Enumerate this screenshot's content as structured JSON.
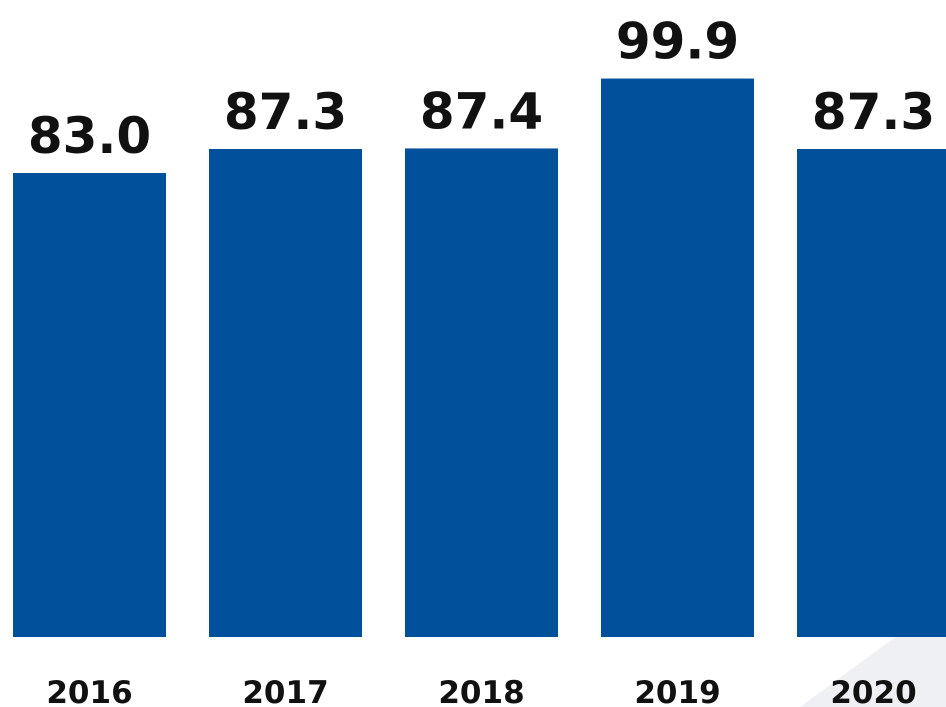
{
  "chart_data": {
    "type": "bar",
    "categories": [
      "2016",
      "2017",
      "2018",
      "2019",
      "2020"
    ],
    "values": [
      83.0,
      87.3,
      87.4,
      99.9,
      87.3
    ],
    "value_labels": [
      "83.0",
      "87.3",
      "87.4",
      "99.9",
      "87.3"
    ],
    "title": "",
    "xlabel": "",
    "ylabel": "",
    "grid": false,
    "legend": "none",
    "colors": {
      "bar": "#00509b",
      "text": "#111111",
      "background": "#ffffff",
      "corner_shade": "#eef0f3"
    }
  }
}
